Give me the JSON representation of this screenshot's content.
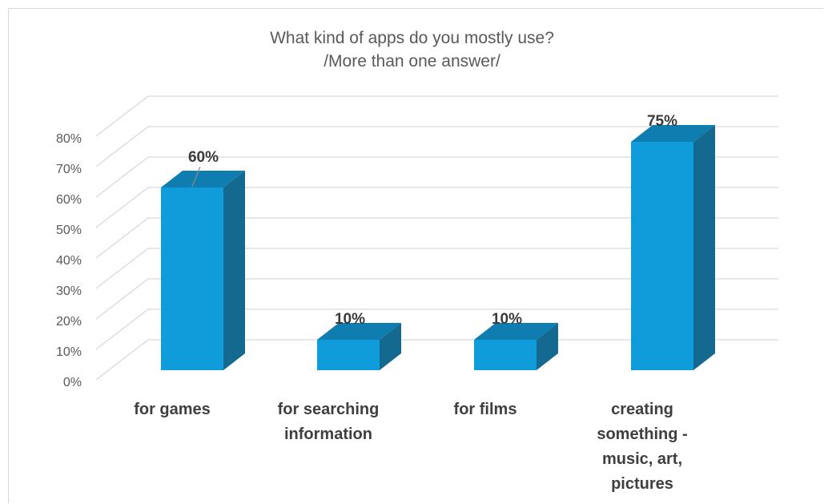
{
  "chart_data": {
    "type": "bar",
    "title": [
      "What kind of apps do you mostly use?",
      "/More than one answer/"
    ],
    "categories": [
      [
        "for games"
      ],
      [
        "for searching",
        "information"
      ],
      [
        "for films"
      ],
      [
        "creating",
        "something -",
        "music, art,",
        "pictures"
      ]
    ],
    "values": [
      60,
      10,
      10,
      75
    ],
    "data_labels": [
      "60%",
      "10%",
      "10%",
      "75%"
    ],
    "y_ticks": [
      "0%",
      "10%",
      "20%",
      "30%",
      "40%",
      "50%",
      "60%",
      "70%",
      "80%"
    ],
    "ylim": [
      0,
      80
    ],
    "grid": true,
    "legend": "none",
    "colors": {
      "bar_front": "#109CDB",
      "bar_side": "#13698F",
      "bar_top": "#0F7DAF",
      "grid": "#d9d9d9"
    }
  }
}
